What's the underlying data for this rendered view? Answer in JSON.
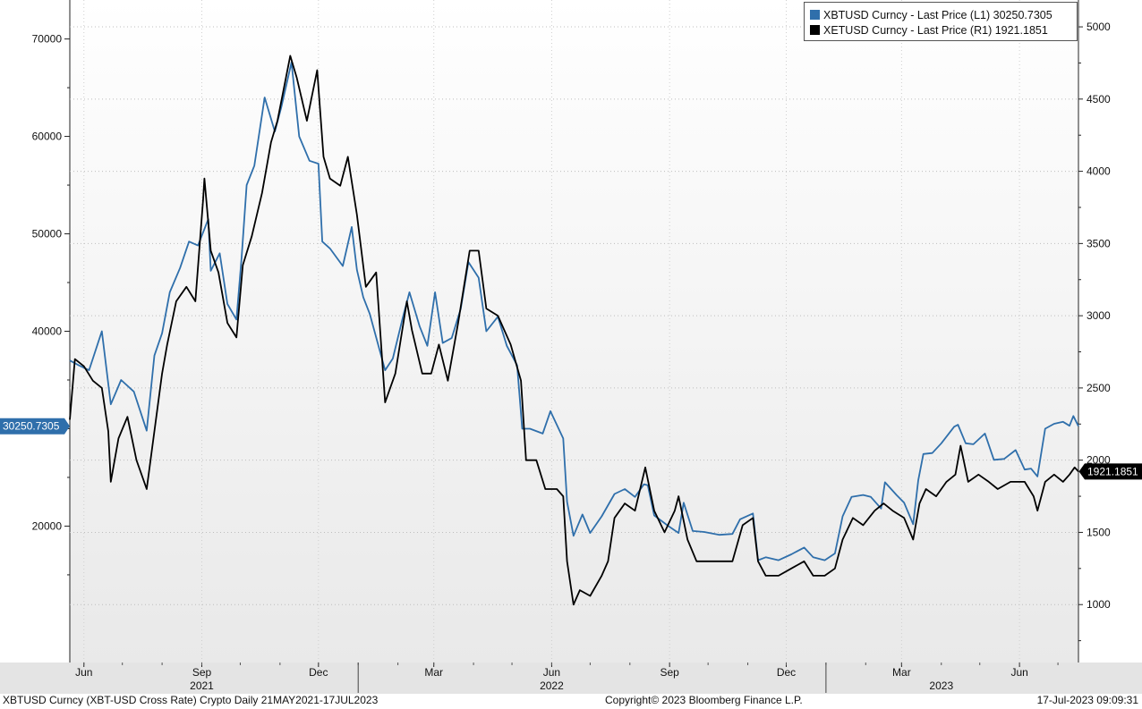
{
  "chart_data": {
    "type": "line",
    "left_axis": {
      "ylim": [
        6000,
        74000
      ],
      "ticks": [
        20000,
        30000,
        40000,
        50000,
        60000,
        70000
      ],
      "tick_labels": [
        "20000",
        "",
        "40000",
        "50000",
        "60000",
        "70000"
      ]
    },
    "right_axis": {
      "ylim": [
        599,
        5186
      ],
      "ticks": [
        1000,
        1500,
        2000,
        2500,
        3000,
        3500,
        4000,
        4500,
        5000
      ],
      "tick_labels": [
        "1000",
        "1500",
        "2000",
        "2500",
        "3000",
        "3500",
        "4000",
        "4500",
        "5000"
      ]
    },
    "x_range": [
      "2021-05-21",
      "2023-07-17"
    ],
    "month_ticks": [
      {
        "date": "2021-06-01",
        "label": "Jun"
      },
      {
        "date": "2021-09-01",
        "label": "Sep"
      },
      {
        "date": "2021-12-01",
        "label": "Dec"
      },
      {
        "date": "2022-03-01",
        "label": "Mar"
      },
      {
        "date": "2022-06-01",
        "label": "Jun"
      },
      {
        "date": "2022-09-01",
        "label": "Sep"
      },
      {
        "date": "2022-12-01",
        "label": "Dec"
      },
      {
        "date": "2023-03-01",
        "label": "Mar"
      },
      {
        "date": "2023-06-01",
        "label": "Jun"
      }
    ],
    "year_labels": [
      {
        "date": "2021-09-01",
        "label": "2021"
      },
      {
        "date": "2022-06-01",
        "label": "2022"
      },
      {
        "date": "2023-04-01",
        "label": "2023"
      }
    ],
    "year_boundaries": [
      "2022-01-01",
      "2023-01-01"
    ],
    "series": [
      {
        "name": "XBTUSD Curncy - Last Price (L1) 30250.7305",
        "axis": "left",
        "color": "#2f6fab",
        "last_value_label": "30250.7305",
        "points": [
          [
            "2021-05-21",
            37000
          ],
          [
            "2021-05-28",
            36500
          ],
          [
            "2021-06-05",
            36000
          ],
          [
            "2021-06-15",
            40000
          ],
          [
            "2021-06-22",
            32500
          ],
          [
            "2021-06-30",
            35000
          ],
          [
            "2021-07-10",
            33800
          ],
          [
            "2021-07-20",
            29800
          ],
          [
            "2021-07-26",
            37500
          ],
          [
            "2021-08-01",
            39800
          ],
          [
            "2021-08-07",
            44000
          ],
          [
            "2021-08-15",
            46500
          ],
          [
            "2021-08-22",
            49200
          ],
          [
            "2021-08-29",
            48800
          ],
          [
            "2021-09-06",
            51500
          ],
          [
            "2021-09-08",
            46200
          ],
          [
            "2021-09-15",
            48000
          ],
          [
            "2021-09-21",
            42800
          ],
          [
            "2021-09-28",
            41200
          ],
          [
            "2021-10-02",
            47500
          ],
          [
            "2021-10-06",
            55000
          ],
          [
            "2021-10-12",
            57000
          ],
          [
            "2021-10-20",
            64000
          ],
          [
            "2021-10-28",
            60500
          ],
          [
            "2021-11-02",
            63000
          ],
          [
            "2021-11-10",
            67600
          ],
          [
            "2021-11-16",
            60000
          ],
          [
            "2021-11-24",
            57500
          ],
          [
            "2021-12-01",
            57200
          ],
          [
            "2021-12-04",
            49200
          ],
          [
            "2021-12-10",
            48500
          ],
          [
            "2021-12-20",
            46700
          ],
          [
            "2021-12-27",
            50700
          ],
          [
            "2021-12-31",
            46300
          ],
          [
            "2022-01-05",
            43500
          ],
          [
            "2022-01-10",
            41800
          ],
          [
            "2022-01-22",
            36000
          ],
          [
            "2022-01-28",
            37200
          ],
          [
            "2022-02-05",
            41500
          ],
          [
            "2022-02-10",
            44000
          ],
          [
            "2022-02-18",
            40500
          ],
          [
            "2022-02-24",
            38500
          ],
          [
            "2022-03-02",
            44000
          ],
          [
            "2022-03-08",
            38800
          ],
          [
            "2022-03-15",
            39300
          ],
          [
            "2022-03-22",
            42300
          ],
          [
            "2022-03-28",
            47100
          ],
          [
            "2022-04-05",
            45500
          ],
          [
            "2022-04-11",
            40000
          ],
          [
            "2022-04-20",
            41500
          ],
          [
            "2022-04-27",
            38500
          ],
          [
            "2022-05-05",
            36500
          ],
          [
            "2022-05-09",
            30000
          ],
          [
            "2022-05-15",
            30000
          ],
          [
            "2022-05-25",
            29500
          ],
          [
            "2022-05-31",
            31800
          ],
          [
            "2022-06-10",
            29000
          ],
          [
            "2022-06-13",
            22500
          ],
          [
            "2022-06-18",
            19000
          ],
          [
            "2022-06-25",
            21200
          ],
          [
            "2022-07-01",
            19300
          ],
          [
            "2022-07-10",
            21000
          ],
          [
            "2022-07-20",
            23300
          ],
          [
            "2022-07-28",
            23800
          ],
          [
            "2022-08-05",
            23000
          ],
          [
            "2022-08-12",
            24300
          ],
          [
            "2022-08-15",
            24200
          ],
          [
            "2022-08-20",
            21100
          ],
          [
            "2022-08-31",
            20000
          ],
          [
            "2022-09-08",
            19300
          ],
          [
            "2022-09-12",
            22400
          ],
          [
            "2022-09-19",
            19500
          ],
          [
            "2022-09-28",
            19400
          ],
          [
            "2022-10-10",
            19100
          ],
          [
            "2022-10-20",
            19200
          ],
          [
            "2022-10-26",
            20700
          ],
          [
            "2022-11-05",
            21300
          ],
          [
            "2022-11-09",
            16500
          ],
          [
            "2022-11-15",
            16800
          ],
          [
            "2022-11-25",
            16500
          ],
          [
            "2022-12-05",
            17100
          ],
          [
            "2022-12-15",
            17800
          ],
          [
            "2022-12-22",
            16800
          ],
          [
            "2022-12-31",
            16500
          ],
          [
            "2023-01-08",
            17200
          ],
          [
            "2023-01-14",
            21000
          ],
          [
            "2023-01-21",
            23000
          ],
          [
            "2023-01-30",
            23200
          ],
          [
            "2023-02-05",
            23000
          ],
          [
            "2023-02-13",
            21800
          ],
          [
            "2023-02-16",
            24500
          ],
          [
            "2023-02-25",
            23200
          ],
          [
            "2023-03-03",
            22400
          ],
          [
            "2023-03-10",
            20200
          ],
          [
            "2023-03-14",
            24700
          ],
          [
            "2023-03-18",
            27400
          ],
          [
            "2023-03-25",
            27500
          ],
          [
            "2023-04-01",
            28500
          ],
          [
            "2023-04-11",
            30200
          ],
          [
            "2023-04-14",
            30400
          ],
          [
            "2023-04-20",
            28500
          ],
          [
            "2023-04-26",
            28400
          ],
          [
            "2023-05-05",
            29500
          ],
          [
            "2023-05-12",
            26800
          ],
          [
            "2023-05-20",
            26900
          ],
          [
            "2023-05-29",
            27800
          ],
          [
            "2023-06-05",
            25800
          ],
          [
            "2023-06-10",
            25900
          ],
          [
            "2023-06-15",
            25100
          ],
          [
            "2023-06-21",
            30000
          ],
          [
            "2023-06-28",
            30500
          ],
          [
            "2023-07-05",
            30700
          ],
          [
            "2023-07-10",
            30300
          ],
          [
            "2023-07-13",
            31300
          ],
          [
            "2023-07-17",
            30250.73
          ]
        ]
      },
      {
        "name": "XETUSD Curncy - Last Price (R1) 1921.1851",
        "axis": "right",
        "color": "#000000",
        "last_value_label": "1921.1851",
        "points": [
          [
            "2021-05-21",
            2280
          ],
          [
            "2021-05-25",
            2700
          ],
          [
            "2021-06-01",
            2650
          ],
          [
            "2021-06-08",
            2550
          ],
          [
            "2021-06-15",
            2500
          ],
          [
            "2021-06-20",
            2200
          ],
          [
            "2021-06-22",
            1850
          ],
          [
            "2021-06-28",
            2150
          ],
          [
            "2021-07-05",
            2300
          ],
          [
            "2021-07-12",
            2000
          ],
          [
            "2021-07-20",
            1800
          ],
          [
            "2021-07-26",
            2200
          ],
          [
            "2021-08-01",
            2600
          ],
          [
            "2021-08-05",
            2800
          ],
          [
            "2021-08-12",
            3100
          ],
          [
            "2021-08-20",
            3200
          ],
          [
            "2021-08-27",
            3100
          ],
          [
            "2021-09-02",
            3800
          ],
          [
            "2021-09-03",
            3950
          ],
          [
            "2021-09-08",
            3450
          ],
          [
            "2021-09-14",
            3300
          ],
          [
            "2021-09-21",
            2950
          ],
          [
            "2021-09-28",
            2850
          ],
          [
            "2021-10-03",
            3350
          ],
          [
            "2021-10-10",
            3550
          ],
          [
            "2021-10-18",
            3850
          ],
          [
            "2021-10-25",
            4200
          ],
          [
            "2021-10-30",
            4350
          ],
          [
            "2021-11-09",
            4800
          ],
          [
            "2021-11-14",
            4650
          ],
          [
            "2021-11-22",
            4350
          ],
          [
            "2021-11-30",
            4700
          ],
          [
            "2021-12-05",
            4100
          ],
          [
            "2021-12-10",
            3950
          ],
          [
            "2021-12-18",
            3900
          ],
          [
            "2021-12-24",
            4100
          ],
          [
            "2021-12-31",
            3700
          ],
          [
            "2022-01-07",
            3200
          ],
          [
            "2022-01-15",
            3300
          ],
          [
            "2022-01-22",
            2400
          ],
          [
            "2022-01-30",
            2600
          ],
          [
            "2022-02-08",
            3100
          ],
          [
            "2022-02-12",
            2900
          ],
          [
            "2022-02-20",
            2600
          ],
          [
            "2022-02-27",
            2600
          ],
          [
            "2022-03-05",
            2800
          ],
          [
            "2022-03-12",
            2550
          ],
          [
            "2022-03-20",
            2950
          ],
          [
            "2022-03-29",
            3450
          ],
          [
            "2022-04-05",
            3450
          ],
          [
            "2022-04-11",
            3050
          ],
          [
            "2022-04-20",
            3000
          ],
          [
            "2022-04-30",
            2800
          ],
          [
            "2022-05-08",
            2550
          ],
          [
            "2022-05-12",
            2000
          ],
          [
            "2022-05-20",
            2000
          ],
          [
            "2022-05-27",
            1800
          ],
          [
            "2022-06-05",
            1800
          ],
          [
            "2022-06-10",
            1750
          ],
          [
            "2022-06-13",
            1300
          ],
          [
            "2022-06-18",
            1000
          ],
          [
            "2022-06-23",
            1100
          ],
          [
            "2022-07-01",
            1060
          ],
          [
            "2022-07-10",
            1200
          ],
          [
            "2022-07-15",
            1300
          ],
          [
            "2022-07-20",
            1600
          ],
          [
            "2022-07-28",
            1700
          ],
          [
            "2022-08-05",
            1650
          ],
          [
            "2022-08-13",
            1950
          ],
          [
            "2022-08-20",
            1650
          ],
          [
            "2022-08-28",
            1500
          ],
          [
            "2022-09-05",
            1650
          ],
          [
            "2022-09-08",
            1750
          ],
          [
            "2022-09-15",
            1450
          ],
          [
            "2022-09-22",
            1300
          ],
          [
            "2022-10-01",
            1300
          ],
          [
            "2022-10-10",
            1300
          ],
          [
            "2022-10-20",
            1300
          ],
          [
            "2022-10-28",
            1550
          ],
          [
            "2022-11-05",
            1600
          ],
          [
            "2022-11-09",
            1300
          ],
          [
            "2022-11-15",
            1200
          ],
          [
            "2022-11-25",
            1200
          ],
          [
            "2022-12-05",
            1250
          ],
          [
            "2022-12-15",
            1300
          ],
          [
            "2022-12-22",
            1200
          ],
          [
            "2022-12-31",
            1200
          ],
          [
            "2023-01-08",
            1250
          ],
          [
            "2023-01-14",
            1450
          ],
          [
            "2023-01-22",
            1600
          ],
          [
            "2023-01-30",
            1550
          ],
          [
            "2023-02-08",
            1650
          ],
          [
            "2023-02-15",
            1700
          ],
          [
            "2023-02-22",
            1650
          ],
          [
            "2023-03-03",
            1600
          ],
          [
            "2023-03-10",
            1450
          ],
          [
            "2023-03-15",
            1700
          ],
          [
            "2023-03-20",
            1800
          ],
          [
            "2023-03-28",
            1750
          ],
          [
            "2023-04-05",
            1850
          ],
          [
            "2023-04-12",
            1900
          ],
          [
            "2023-04-16",
            2100
          ],
          [
            "2023-04-22",
            1850
          ],
          [
            "2023-04-30",
            1900
          ],
          [
            "2023-05-08",
            1850
          ],
          [
            "2023-05-15",
            1800
          ],
          [
            "2023-05-25",
            1850
          ],
          [
            "2023-06-05",
            1850
          ],
          [
            "2023-06-12",
            1750
          ],
          [
            "2023-06-15",
            1650
          ],
          [
            "2023-06-21",
            1850
          ],
          [
            "2023-06-28",
            1900
          ],
          [
            "2023-07-05",
            1850
          ],
          [
            "2023-07-10",
            1900
          ],
          [
            "2023-07-14",
            1950
          ],
          [
            "2023-07-17",
            1921.19
          ]
        ]
      }
    ]
  },
  "legend": {
    "items": [
      {
        "label": "XBTUSD Curncy - Last Price (L1) 30250.7305",
        "color": "#2f6fab"
      },
      {
        "label": "XETUSD Curncy - Last Price (R1) 1921.1851",
        "color": "#000000"
      }
    ]
  },
  "footer": {
    "left": "XBTUSD Curncy (XBT-USD Cross Rate) Crypto  Daily 21MAY2021-17JUL2023",
    "center": "Copyright© 2023 Bloomberg Finance L.P.",
    "right": "17-Jul-2023 09:09:31"
  }
}
